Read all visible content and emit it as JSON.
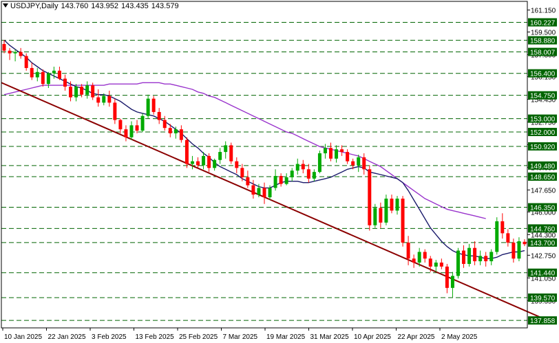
{
  "header": {
    "symbol": "USDJPY,Daily",
    "open": "143.760",
    "high": "143.952",
    "low": "143.435",
    "close": "143.579"
  },
  "chart_data": {
    "type": "candlestick",
    "symbol": "USDJPY",
    "timeframe": "Daily",
    "ylim": [
      137.3,
      161.8
    ],
    "y_ticks": [
      "161.150",
      "159.500",
      "157.800",
      "156.150",
      "154.450",
      "152.750",
      "151.050",
      "149.350",
      "147.650",
      "146.000",
      "144.300",
      "142.750",
      "141.050",
      "139.350"
    ],
    "x_ticks": [
      "10 Jan 2025",
      "22 Jan 2025",
      "3 Feb 2025",
      "13 Feb 2025",
      "25 Feb 2025",
      "7 Mar 2025",
      "19 Mar 2025",
      "31 Mar 2025",
      "10 Apr 2025",
      "22 Apr 2025",
      "2 May 2025"
    ],
    "horizontal_levels": [
      "160.227",
      "158.880",
      "158.007",
      "156.400",
      "154.750",
      "153.000",
      "152.000",
      "150.920",
      "149.480",
      "148.650",
      "146.350",
      "144.760",
      "143.700",
      "141.440",
      "139.570",
      "137.858"
    ],
    "candles": [
      [
        158.6,
        158.9,
        157.9,
        158.1
      ],
      [
        158.1,
        158.3,
        157.4,
        157.9
      ],
      [
        157.9,
        158.2,
        157.3,
        158.0
      ],
      [
        158.0,
        158.3,
        157.5,
        157.7
      ],
      [
        157.7,
        157.9,
        156.6,
        156.8
      ],
      [
        156.8,
        157.2,
        155.9,
        156.1
      ],
      [
        156.1,
        156.8,
        155.8,
        156.5
      ],
      [
        156.5,
        156.7,
        155.4,
        155.6
      ],
      [
        155.6,
        156.5,
        155.3,
        156.4
      ],
      [
        156.4,
        156.9,
        156.0,
        156.6
      ],
      [
        156.6,
        156.9,
        155.9,
        156.0
      ],
      [
        156.0,
        156.3,
        155.1,
        155.4
      ],
      [
        155.4,
        155.8,
        154.3,
        154.6
      ],
      [
        154.6,
        155.6,
        154.3,
        155.4
      ],
      [
        155.4,
        155.6,
        154.6,
        154.8
      ],
      [
        154.8,
        155.8,
        154.5,
        155.5
      ],
      [
        155.5,
        155.7,
        154.4,
        154.6
      ],
      [
        154.6,
        155.2,
        153.9,
        154.2
      ],
      [
        154.2,
        154.9,
        154.0,
        154.7
      ],
      [
        154.7,
        155.1,
        153.9,
        154.2
      ],
      [
        154.2,
        154.5,
        152.6,
        152.9
      ],
      [
        152.9,
        153.0,
        151.9,
        152.2
      ],
      [
        152.2,
        152.5,
        151.3,
        151.6
      ],
      [
        151.6,
        152.8,
        151.4,
        152.5
      ],
      [
        152.5,
        152.9,
        151.9,
        152.1
      ],
      [
        152.1,
        153.4,
        152.0,
        153.2
      ],
      [
        153.2,
        154.8,
        153.0,
        154.5
      ],
      [
        154.5,
        154.7,
        153.3,
        153.5
      ],
      [
        153.5,
        153.8,
        152.6,
        152.9
      ],
      [
        152.9,
        153.2,
        152.1,
        152.3
      ],
      [
        152.3,
        152.6,
        151.6,
        151.9
      ],
      [
        151.9,
        152.4,
        151.5,
        152.2
      ],
      [
        152.2,
        152.5,
        151.2,
        151.4
      ],
      [
        151.4,
        151.6,
        149.3,
        149.6
      ],
      [
        149.6,
        150.2,
        149.2,
        149.8
      ],
      [
        149.8,
        150.1,
        149.3,
        149.5
      ],
      [
        149.5,
        150.5,
        149.2,
        150.2
      ],
      [
        150.2,
        150.4,
        149.0,
        149.3
      ],
      [
        149.3,
        150.0,
        149.1,
        149.9
      ],
      [
        149.9,
        150.8,
        149.6,
        150.5
      ],
      [
        150.5,
        151.3,
        150.0,
        151.0
      ],
      [
        151.0,
        151.2,
        149.6,
        149.8
      ],
      [
        149.8,
        150.1,
        148.9,
        149.3
      ],
      [
        149.3,
        149.6,
        148.3,
        148.6
      ],
      [
        148.6,
        149.1,
        147.8,
        148.0
      ],
      [
        148.0,
        148.4,
        147.0,
        147.3
      ],
      [
        147.3,
        148.1,
        147.1,
        147.8
      ],
      [
        147.8,
        148.2,
        146.6,
        147.1
      ],
      [
        147.1,
        148.0,
        146.9,
        147.8
      ],
      [
        147.8,
        149.2,
        147.6,
        148.7
      ],
      [
        148.7,
        148.9,
        147.9,
        148.1
      ],
      [
        148.1,
        148.9,
        148.0,
        148.6
      ],
      [
        148.6,
        149.3,
        148.3,
        149.1
      ],
      [
        149.1,
        150.0,
        148.8,
        149.6
      ],
      [
        149.6,
        149.9,
        148.9,
        149.2
      ],
      [
        149.2,
        149.6,
        148.2,
        148.5
      ],
      [
        148.5,
        149.2,
        148.3,
        149.0
      ],
      [
        149.0,
        150.6,
        148.9,
        150.4
      ],
      [
        150.4,
        151.1,
        150.0,
        150.8
      ],
      [
        150.8,
        151.2,
        149.8,
        150.0
      ],
      [
        150.0,
        151.0,
        149.7,
        150.7
      ],
      [
        150.7,
        151.0,
        150.2,
        150.5
      ],
      [
        150.5,
        150.7,
        149.6,
        149.8
      ],
      [
        149.8,
        150.0,
        149.2,
        149.5
      ],
      [
        149.5,
        150.3,
        149.0,
        150.1
      ],
      [
        150.1,
        150.4,
        148.8,
        149.2
      ],
      [
        149.2,
        149.5,
        144.6,
        145.0
      ],
      [
        145.0,
        146.6,
        144.8,
        146.3
      ],
      [
        146.3,
        146.7,
        144.8,
        145.2
      ],
      [
        145.2,
        147.3,
        145.0,
        147.0
      ],
      [
        147.0,
        147.3,
        145.9,
        146.1
      ],
      [
        146.1,
        147.2,
        145.8,
        147.0
      ],
      [
        147.0,
        147.2,
        143.4,
        143.7
      ],
      [
        143.7,
        144.2,
        142.0,
        142.5
      ],
      [
        142.5,
        142.8,
        141.8,
        142.2
      ],
      [
        142.2,
        143.3,
        141.9,
        143.0
      ],
      [
        143.0,
        143.2,
        142.2,
        142.5
      ],
      [
        142.5,
        142.7,
        141.5,
        141.9
      ],
      [
        141.9,
        142.4,
        141.5,
        142.2
      ],
      [
        142.2,
        142.5,
        141.7,
        141.9
      ],
      [
        141.9,
        142.1,
        139.9,
        140.3
      ],
      [
        140.3,
        141.5,
        139.6,
        141.2
      ],
      [
        141.2,
        143.3,
        141.0,
        143.1
      ],
      [
        143.1,
        143.5,
        141.8,
        142.1
      ],
      [
        142.1,
        143.6,
        141.9,
        143.3
      ],
      [
        143.3,
        143.8,
        142.0,
        142.3
      ],
      [
        142.3,
        143.1,
        142.0,
        142.7
      ],
      [
        142.7,
        143.0,
        141.9,
        142.3
      ],
      [
        142.3,
        143.2,
        142.0,
        143.0
      ],
      [
        143.0,
        145.6,
        142.8,
        145.3
      ],
      [
        145.3,
        145.9,
        144.0,
        144.4
      ],
      [
        144.4,
        144.7,
        143.4,
        143.7
      ],
      [
        143.7,
        144.0,
        142.2,
        142.5
      ],
      [
        142.5,
        144.1,
        142.3,
        143.8
      ],
      [
        143.76,
        143.952,
        143.435,
        143.579
      ]
    ],
    "trendline": {
      "x": [
        0,
        99
      ],
      "y": [
        155.7,
        137.8
      ]
    },
    "ma_fast": [
      158.9,
      158.5,
      158.2,
      157.9,
      157.6,
      157.2,
      156.9,
      156.6,
      156.4,
      156.2,
      156.0,
      155.8,
      155.6,
      155.4,
      155.3,
      155.1,
      154.9,
      154.8,
      154.8,
      154.7,
      154.5,
      154.3,
      154.0,
      153.7,
      153.5,
      153.4,
      153.3,
      153.2,
      153.0,
      152.8,
      152.5,
      152.2,
      151.9,
      151.5,
      151.1,
      150.8,
      150.4,
      150.1,
      149.7,
      149.4,
      149.2,
      149.0,
      148.8,
      148.5,
      148.3,
      148.1,
      147.9,
      147.8,
      147.8,
      148.0,
      148.2,
      148.3,
      148.3,
      148.3,
      148.2,
      148.2,
      148.3,
      148.4,
      148.5,
      148.6,
      148.8,
      149.0,
      149.2,
      149.3,
      149.4,
      149.3,
      149.0,
      148.9,
      148.8,
      148.7,
      148.6,
      148.5,
      148.2,
      147.6,
      146.9,
      146.2,
      145.5,
      144.8,
      144.3,
      143.8,
      143.4,
      143.1,
      142.9,
      142.8,
      142.7,
      142.7,
      142.6,
      142.5,
      142.5,
      142.6,
      142.8,
      142.9,
      143.0,
      143.0,
      143.1
    ],
    "ma_slow": [
      154.8,
      154.9,
      155.0,
      155.1,
      155.2,
      155.3,
      155.4,
      155.5,
      155.5,
      155.5,
      155.5,
      155.5,
      155.5,
      155.5,
      155.5,
      155.5,
      155.5,
      155.5,
      155.5,
      155.6,
      155.6,
      155.6,
      155.6,
      155.6,
      155.6,
      155.7,
      155.7,
      155.7,
      155.7,
      155.6,
      155.6,
      155.5,
      155.4,
      155.3,
      155.2,
      155.0,
      154.9,
      154.7,
      154.6,
      154.4,
      154.2,
      154.0,
      153.8,
      153.6,
      153.4,
      153.2,
      153.0,
      152.8,
      152.6,
      152.4,
      152.2,
      152.0,
      151.9,
      151.7,
      151.5,
      151.3,
      151.1,
      150.9,
      150.8,
      150.7,
      150.6,
      150.5,
      150.4,
      150.3,
      150.2,
      150.0,
      149.8,
      149.6,
      149.4,
      149.1,
      148.8,
      148.5,
      148.2,
      147.9,
      147.6,
      147.3,
      147.0,
      146.8,
      146.6,
      146.4,
      146.2,
      146.1,
      146.0,
      145.9,
      145.8,
      145.7,
      145.6,
      145.5
    ],
    "colors": {
      "up": "#00aa00",
      "down": "#ff0000",
      "ma_fast": "#1a1a6b",
      "ma_slow": "#9933cc",
      "trendline": "#8b0000",
      "level": "#006400"
    }
  }
}
